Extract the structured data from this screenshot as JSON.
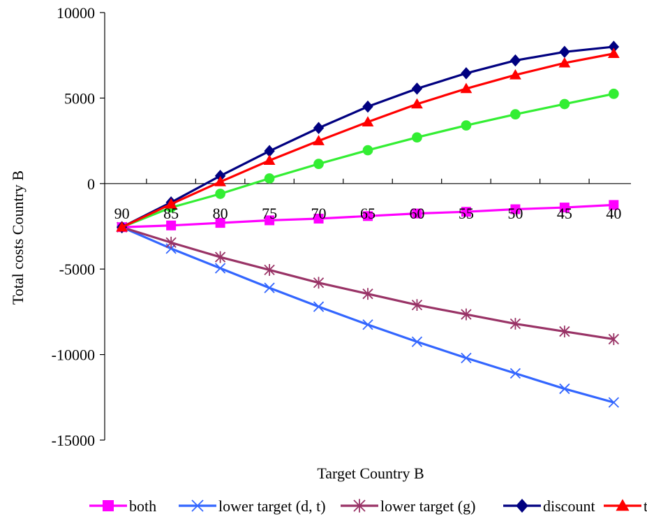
{
  "chart_data": {
    "type": "line",
    "xlabel": "Target Country B",
    "ylabel": "Total costs Country B",
    "x": [
      90,
      85,
      80,
      75,
      70,
      65,
      60,
      55,
      50,
      45,
      40
    ],
    "ylim": [
      -15000,
      10000
    ],
    "yticks": [
      10000,
      5000,
      0,
      -5000,
      -10000,
      -15000
    ],
    "grid": false,
    "legend_position": "bottom",
    "series": [
      {
        "name": "both",
        "color": "#ff00ff",
        "marker": "square",
        "values": [
          -2550,
          -2450,
          -2300,
          -2150,
          -2050,
          -1900,
          -1750,
          -1650,
          -1500,
          -1400,
          -1250
        ]
      },
      {
        "name": "lower target (d, t)",
        "color": "#3366ff",
        "marker": "x",
        "values": [
          -2550,
          -3800,
          -4950,
          -6100,
          -7200,
          -8250,
          -9250,
          -10200,
          -11100,
          -12000,
          -12800
        ]
      },
      {
        "name": "lower target (g)",
        "color": "#993366",
        "marker": "asterisk",
        "values": [
          -2550,
          -3450,
          -4300,
          -5050,
          -5800,
          -6450,
          -7100,
          -7650,
          -8200,
          -8650,
          -9100
        ]
      },
      {
        "name": "discount",
        "color": "#000080",
        "marker": "diamond",
        "values": [
          -2550,
          -1100,
          450,
          1900,
          3250,
          4500,
          5550,
          6450,
          7200,
          7700,
          8000
        ]
      },
      {
        "name": "t",
        "color": "#ff0000",
        "marker": "triangle",
        "values": [
          -2550,
          -1200,
          100,
          1350,
          2500,
          3600,
          4650,
          5550,
          6350,
          7050,
          7600
        ]
      },
      {
        "name": "",
        "color": "#33ee33",
        "marker": "circle",
        "values": [
          -2550,
          -1400,
          -600,
          300,
          1150,
          1950,
          2700,
          3400,
          4050,
          4650,
          5250
        ]
      }
    ]
  }
}
